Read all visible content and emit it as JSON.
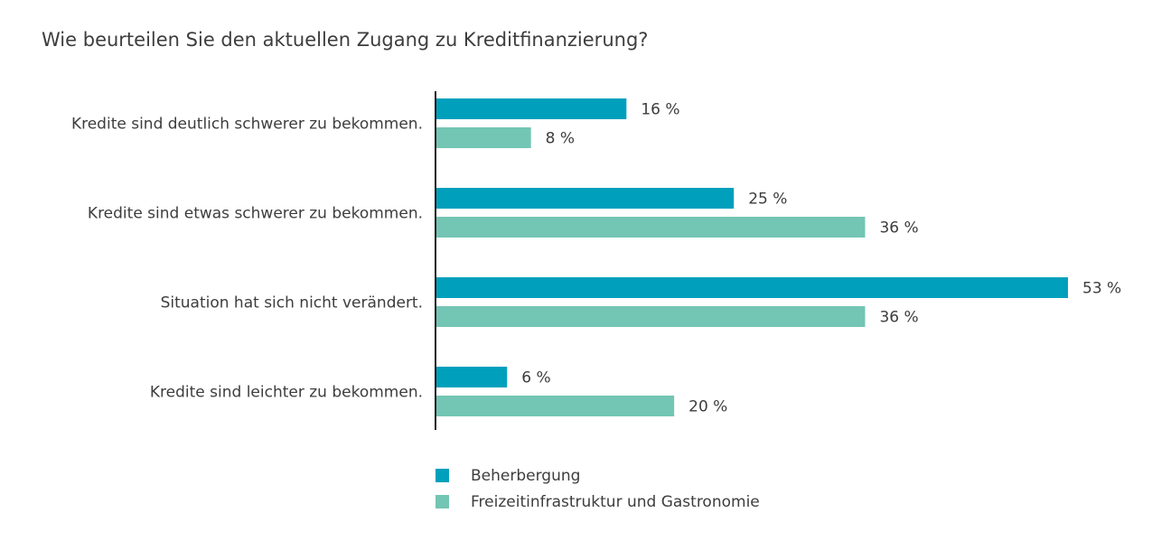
{
  "chart_data": {
    "type": "bar",
    "orientation": "horizontal",
    "title": "Wie beurteilen Sie den aktuellen Zugang zu Kreditfinanzierung?",
    "categories": [
      "Kredite sind deutlich schwerer zu bekommen.",
      "Kredite sind etwas schwerer zu bekommen.",
      "Situation hat sich nicht verändert.",
      "Kredite sind leichter zu bekommen."
    ],
    "series": [
      {
        "name": "Beherbergung",
        "color": "#00a0bc",
        "values": [
          16,
          25,
          53,
          6
        ],
        "labels": [
          "16 %",
          "25 %",
          "53 %",
          "6 %"
        ]
      },
      {
        "name": "Freizeitinfrastruktur und Gastronomie",
        "color": "#73c5b4",
        "values": [
          8,
          36,
          36,
          20
        ],
        "labels": [
          "8 %",
          "36 %",
          "36 %",
          "20 %"
        ]
      }
    ],
    "unit": "%",
    "xlim": [
      0,
      53
    ],
    "grid": false,
    "legend_position": "bottom"
  }
}
